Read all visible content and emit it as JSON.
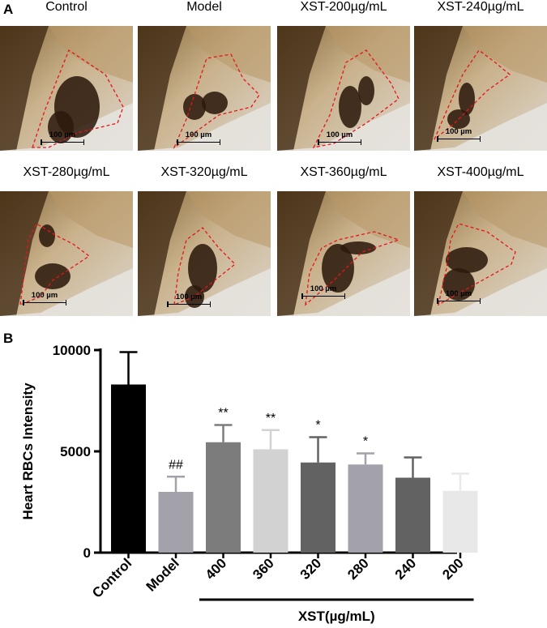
{
  "panel_a": {
    "label": "A",
    "images": [
      {
        "title": "Control",
        "scale": "100 µm",
        "variant": 0
      },
      {
        "title": "Model",
        "scale": "100 µm",
        "variant": 1
      },
      {
        "title": "XST-200µg/mL",
        "scale": "100 µm",
        "variant": 2
      },
      {
        "title": "XST-240µg/mL",
        "scale": "100 µm",
        "variant": 3
      },
      {
        "title": "XST-280µg/mL",
        "scale": "100 µm",
        "variant": 4
      },
      {
        "title": "XST-320µg/mL",
        "scale": "100 µm",
        "variant": 5
      },
      {
        "title": "XST-360µg/mL",
        "scale": "100 µm",
        "variant": 6
      },
      {
        "title": "XST-400µg/mL",
        "scale": "100 µm",
        "variant": 7
      }
    ]
  },
  "panel_b": {
    "label": "B"
  },
  "chart_data": {
    "type": "bar",
    "ylabel": "Heart RBCs Intensity",
    "xlabel": "",
    "group_label": "XST(µg/mL)",
    "ylim": [
      0,
      10000
    ],
    "yticks": [
      "0",
      "5000",
      "10000"
    ],
    "categories": [
      "Control",
      "Model",
      "400",
      "360",
      "320",
      "280",
      "240",
      "200"
    ],
    "values": [
      8300,
      3000,
      5450,
      5100,
      4450,
      4350,
      3700,
      3050
    ],
    "errors": [
      1600,
      750,
      850,
      950,
      1250,
      550,
      1000,
      850
    ],
    "annotations": [
      "",
      "##",
      "**",
      "**",
      "*",
      "*",
      "",
      ""
    ],
    "bar_colors": [
      "#000000",
      "#a3a2aa",
      "#7c7c7c",
      "#d2d2d2",
      "#626262",
      "#a3a2aa",
      "#626262",
      "#e8e8e8"
    ],
    "grid": false
  }
}
